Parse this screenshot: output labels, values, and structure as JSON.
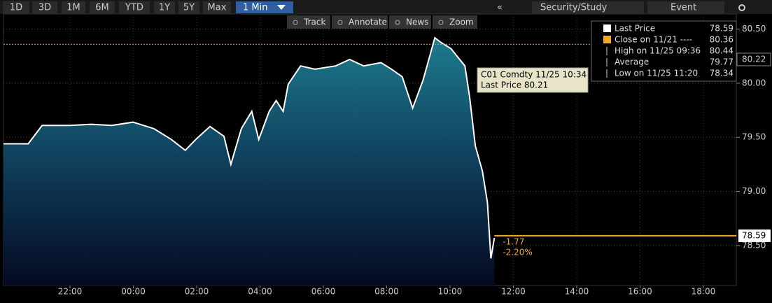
{
  "toolbar": {
    "ranges": [
      "1D",
      "3D",
      "1M",
      "6M",
      "YTD",
      "1Y",
      "5Y",
      "Max"
    ],
    "interval": "1 Min",
    "right_buttons": [
      "Security/Study",
      "Event"
    ]
  },
  "tools": [
    "Track",
    "Annotate",
    "News",
    "Zoom"
  ],
  "chart_data": {
    "type": "line",
    "color": "#ffffff",
    "x": [
      19.9,
      20.68,
      21.12,
      22,
      22.66,
      23.32,
      23.99,
      24.65,
      25.2,
      25.64,
      25.97,
      26.42,
      26.86,
      27.08,
      27.41,
      27.74,
      27.96,
      28.29,
      28.51,
      28.73,
      28.89,
      29.28,
      29.73,
      30.39,
      30.83,
      31.27,
      31.82,
      32.15,
      32.49,
      32.82,
      33.15,
      33.52,
      33.7,
      34.03,
      34.47,
      34.62,
      34.8,
      35.02,
      35.18,
      35.29,
      35.4
    ],
    "series": [
      {
        "name": "Last Price",
        "color": "#ffffff",
        "values": [
          79.44,
          79.44,
          79.61,
          79.61,
          79.62,
          79.61,
          79.64,
          79.58,
          79.48,
          79.38,
          79.48,
          79.6,
          79.51,
          79.25,
          79.58,
          79.74,
          79.48,
          79.74,
          79.84,
          79.74,
          79.99,
          80.16,
          80.13,
          80.16,
          80.22,
          80.16,
          80.19,
          80.13,
          80.06,
          79.77,
          80.03,
          80.42,
          80.38,
          80.32,
          80.16,
          79.87,
          79.42,
          79.19,
          78.9,
          78.38,
          78.57
        ]
      }
    ],
    "xlim": [
      19.9,
      43.04
    ],
    "xticks": [
      {
        "value": 22,
        "label": "22:00"
      },
      {
        "value": 24,
        "label": "00:00"
      },
      {
        "value": 26,
        "label": "02:00"
      },
      {
        "value": 28,
        "label": "04:00"
      },
      {
        "value": 30,
        "label": "06:00"
      },
      {
        "value": 32,
        "label": "08:00"
      },
      {
        "value": 34,
        "label": "10:00"
      },
      {
        "value": 36,
        "label": "12:00"
      },
      {
        "value": 38,
        "label": "14:00"
      },
      {
        "value": 40,
        "label": "16:00"
      },
      {
        "value": 42,
        "label": "18:00"
      }
    ],
    "ylim": [
      78.13,
      80.64
    ],
    "yticks": [
      {
        "value": 78.5,
        "label": "78.50"
      },
      {
        "value": 79,
        "label": "79.00"
      },
      {
        "value": 79.5,
        "label": "79.50"
      },
      {
        "value": 80,
        "label": "80.00"
      },
      {
        "value": 80.5,
        "label": "80.50"
      }
    ],
    "grid": true,
    "legend_items": [
      {
        "label": "Last Price",
        "value": 78.59,
        "color": "#ffffff"
      },
      {
        "label": "Close on 11/21 ----",
        "value": 80.36,
        "color": "#f5a623"
      },
      {
        "label": "High on 11/25 09:36",
        "value": 80.44
      },
      {
        "label": "Average",
        "value": 79.77
      },
      {
        "label": "Low on 11/25 11:20",
        "value": 78.34
      }
    ],
    "marker_value": 80.22,
    "tooltip": {
      "line1": "C01 Comdty 11/25 10:34",
      "line2": "Last Price 80.21"
    },
    "annotations": [
      "-1.77",
      "-2.20%"
    ]
  }
}
